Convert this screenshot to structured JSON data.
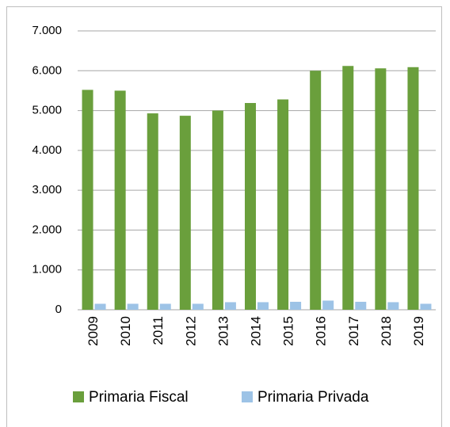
{
  "chart_data": {
    "type": "bar",
    "categories": [
      "2009",
      "2010",
      "2011",
      "2012",
      "2013",
      "2014",
      "2015",
      "2016",
      "2017",
      "2018",
      "2019"
    ],
    "series": [
      {
        "name": "Primaria Fiscal",
        "color": "#6a9f3c",
        "values": [
          5520,
          5500,
          4930,
          4870,
          5000,
          5190,
          5280,
          6000,
          6120,
          6060,
          6090
        ]
      },
      {
        "name": "Primaria Privada",
        "color": "#9dc3e6",
        "values": [
          150,
          150,
          150,
          150,
          190,
          190,
          200,
          230,
          200,
          190,
          150
        ]
      }
    ],
    "ylim": [
      0,
      7000
    ],
    "yticks": [
      0,
      {
        "value": 1000,
        "label": "1.000"
      },
      {
        "value": 2000,
        "label": "2.000"
      },
      {
        "value": 3000,
        "label": "3.000"
      },
      {
        "value": 4000,
        "label": "4.000"
      },
      {
        "value": 5000,
        "label": "5.000"
      },
      {
        "value": 6000,
        "label": "6.000"
      },
      {
        "value": 7000,
        "label": "7.000"
      }
    ],
    "grid": true,
    "legend": "bottom"
  }
}
